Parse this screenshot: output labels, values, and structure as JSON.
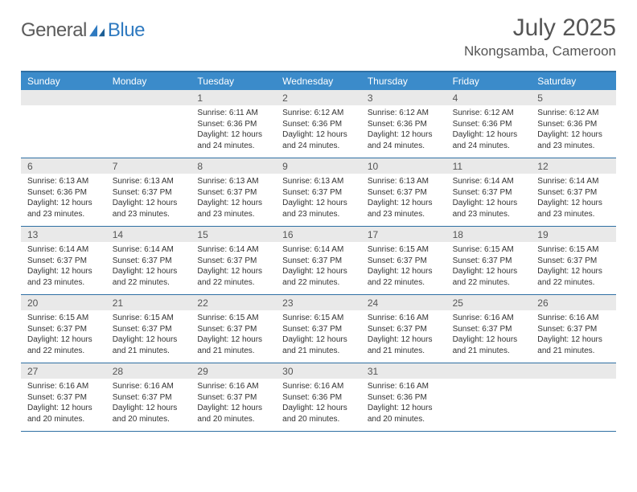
{
  "brand": {
    "word1": "General",
    "word2": "Blue"
  },
  "title": {
    "month": "July 2025",
    "location": "Nkongsamba, Cameroon"
  },
  "colors": {
    "header_bg": "#3b8bca",
    "header_border": "#2e6fa3",
    "row_divider": "#2e6fa3",
    "daynum_bg": "#e9e9e9",
    "text": "#333333",
    "brand_gray": "#5b5b5b",
    "brand_blue": "#2f7ac0"
  },
  "typography": {
    "title_fontsize": 30,
    "location_fontsize": 17,
    "dayname_fontsize": 12,
    "daynum_fontsize": 12,
    "body_fontsize": 10
  },
  "day_names": [
    "Sunday",
    "Monday",
    "Tuesday",
    "Wednesday",
    "Thursday",
    "Friday",
    "Saturday"
  ],
  "weeks": [
    [
      null,
      null,
      {
        "n": "1",
        "sr": "Sunrise: 6:11 AM",
        "ss": "Sunset: 6:36 PM",
        "dl1": "Daylight: 12 hours",
        "dl2": "and 24 minutes."
      },
      {
        "n": "2",
        "sr": "Sunrise: 6:12 AM",
        "ss": "Sunset: 6:36 PM",
        "dl1": "Daylight: 12 hours",
        "dl2": "and 24 minutes."
      },
      {
        "n": "3",
        "sr": "Sunrise: 6:12 AM",
        "ss": "Sunset: 6:36 PM",
        "dl1": "Daylight: 12 hours",
        "dl2": "and 24 minutes."
      },
      {
        "n": "4",
        "sr": "Sunrise: 6:12 AM",
        "ss": "Sunset: 6:36 PM",
        "dl1": "Daylight: 12 hours",
        "dl2": "and 24 minutes."
      },
      {
        "n": "5",
        "sr": "Sunrise: 6:12 AM",
        "ss": "Sunset: 6:36 PM",
        "dl1": "Daylight: 12 hours",
        "dl2": "and 23 minutes."
      }
    ],
    [
      {
        "n": "6",
        "sr": "Sunrise: 6:13 AM",
        "ss": "Sunset: 6:36 PM",
        "dl1": "Daylight: 12 hours",
        "dl2": "and 23 minutes."
      },
      {
        "n": "7",
        "sr": "Sunrise: 6:13 AM",
        "ss": "Sunset: 6:37 PM",
        "dl1": "Daylight: 12 hours",
        "dl2": "and 23 minutes."
      },
      {
        "n": "8",
        "sr": "Sunrise: 6:13 AM",
        "ss": "Sunset: 6:37 PM",
        "dl1": "Daylight: 12 hours",
        "dl2": "and 23 minutes."
      },
      {
        "n": "9",
        "sr": "Sunrise: 6:13 AM",
        "ss": "Sunset: 6:37 PM",
        "dl1": "Daylight: 12 hours",
        "dl2": "and 23 minutes."
      },
      {
        "n": "10",
        "sr": "Sunrise: 6:13 AM",
        "ss": "Sunset: 6:37 PM",
        "dl1": "Daylight: 12 hours",
        "dl2": "and 23 minutes."
      },
      {
        "n": "11",
        "sr": "Sunrise: 6:14 AM",
        "ss": "Sunset: 6:37 PM",
        "dl1": "Daylight: 12 hours",
        "dl2": "and 23 minutes."
      },
      {
        "n": "12",
        "sr": "Sunrise: 6:14 AM",
        "ss": "Sunset: 6:37 PM",
        "dl1": "Daylight: 12 hours",
        "dl2": "and 23 minutes."
      }
    ],
    [
      {
        "n": "13",
        "sr": "Sunrise: 6:14 AM",
        "ss": "Sunset: 6:37 PM",
        "dl1": "Daylight: 12 hours",
        "dl2": "and 23 minutes."
      },
      {
        "n": "14",
        "sr": "Sunrise: 6:14 AM",
        "ss": "Sunset: 6:37 PM",
        "dl1": "Daylight: 12 hours",
        "dl2": "and 22 minutes."
      },
      {
        "n": "15",
        "sr": "Sunrise: 6:14 AM",
        "ss": "Sunset: 6:37 PM",
        "dl1": "Daylight: 12 hours",
        "dl2": "and 22 minutes."
      },
      {
        "n": "16",
        "sr": "Sunrise: 6:14 AM",
        "ss": "Sunset: 6:37 PM",
        "dl1": "Daylight: 12 hours",
        "dl2": "and 22 minutes."
      },
      {
        "n": "17",
        "sr": "Sunrise: 6:15 AM",
        "ss": "Sunset: 6:37 PM",
        "dl1": "Daylight: 12 hours",
        "dl2": "and 22 minutes."
      },
      {
        "n": "18",
        "sr": "Sunrise: 6:15 AM",
        "ss": "Sunset: 6:37 PM",
        "dl1": "Daylight: 12 hours",
        "dl2": "and 22 minutes."
      },
      {
        "n": "19",
        "sr": "Sunrise: 6:15 AM",
        "ss": "Sunset: 6:37 PM",
        "dl1": "Daylight: 12 hours",
        "dl2": "and 22 minutes."
      }
    ],
    [
      {
        "n": "20",
        "sr": "Sunrise: 6:15 AM",
        "ss": "Sunset: 6:37 PM",
        "dl1": "Daylight: 12 hours",
        "dl2": "and 22 minutes."
      },
      {
        "n": "21",
        "sr": "Sunrise: 6:15 AM",
        "ss": "Sunset: 6:37 PM",
        "dl1": "Daylight: 12 hours",
        "dl2": "and 21 minutes."
      },
      {
        "n": "22",
        "sr": "Sunrise: 6:15 AM",
        "ss": "Sunset: 6:37 PM",
        "dl1": "Daylight: 12 hours",
        "dl2": "and 21 minutes."
      },
      {
        "n": "23",
        "sr": "Sunrise: 6:15 AM",
        "ss": "Sunset: 6:37 PM",
        "dl1": "Daylight: 12 hours",
        "dl2": "and 21 minutes."
      },
      {
        "n": "24",
        "sr": "Sunrise: 6:16 AM",
        "ss": "Sunset: 6:37 PM",
        "dl1": "Daylight: 12 hours",
        "dl2": "and 21 minutes."
      },
      {
        "n": "25",
        "sr": "Sunrise: 6:16 AM",
        "ss": "Sunset: 6:37 PM",
        "dl1": "Daylight: 12 hours",
        "dl2": "and 21 minutes."
      },
      {
        "n": "26",
        "sr": "Sunrise: 6:16 AM",
        "ss": "Sunset: 6:37 PM",
        "dl1": "Daylight: 12 hours",
        "dl2": "and 21 minutes."
      }
    ],
    [
      {
        "n": "27",
        "sr": "Sunrise: 6:16 AM",
        "ss": "Sunset: 6:37 PM",
        "dl1": "Daylight: 12 hours",
        "dl2": "and 20 minutes."
      },
      {
        "n": "28",
        "sr": "Sunrise: 6:16 AM",
        "ss": "Sunset: 6:37 PM",
        "dl1": "Daylight: 12 hours",
        "dl2": "and 20 minutes."
      },
      {
        "n": "29",
        "sr": "Sunrise: 6:16 AM",
        "ss": "Sunset: 6:37 PM",
        "dl1": "Daylight: 12 hours",
        "dl2": "and 20 minutes."
      },
      {
        "n": "30",
        "sr": "Sunrise: 6:16 AM",
        "ss": "Sunset: 6:36 PM",
        "dl1": "Daylight: 12 hours",
        "dl2": "and 20 minutes."
      },
      {
        "n": "31",
        "sr": "Sunrise: 6:16 AM",
        "ss": "Sunset: 6:36 PM",
        "dl1": "Daylight: 12 hours",
        "dl2": "and 20 minutes."
      },
      null,
      null
    ]
  ]
}
